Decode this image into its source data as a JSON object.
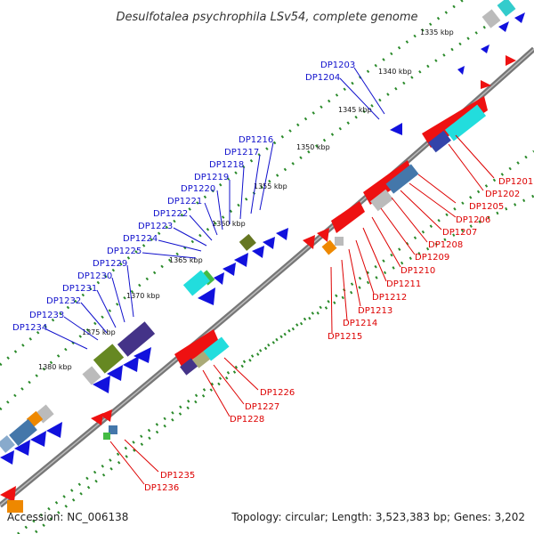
{
  "title": "Desulfotalea psychrophila LSv54, complete genome",
  "footer": {
    "accession": "Accession: NC_006138",
    "summary": "Topology: circular; Length: 3,523,383 bp; Genes: 3,202"
  },
  "scale_labels": [
    "1335 kbp",
    "1340 kbp",
    "1345 kbp",
    "1350 kbp",
    "1355 kbp",
    "1360 kbp",
    "1365 kbp",
    "1370 kbp",
    "1375 kbp",
    "1380 kbp"
  ],
  "colors": {
    "forward_label": "#1010cc",
    "reverse_label": "#dd0000",
    "backbone": "#777777",
    "tick": "#2a8a2a"
  },
  "forward_genes": [
    "DP1203",
    "DP1204",
    "DP1216",
    "DP1217",
    "DP1218",
    "DP1219",
    "DP1220",
    "DP1221",
    "DP1222",
    "DP1223",
    "DP1224",
    "DP1225",
    "DP1229",
    "DP1230",
    "DP1231",
    "DP1232",
    "DP1233",
    "DP1234"
  ],
  "reverse_genes": [
    "DP1201",
    "DP1202",
    "DP1205",
    "DP1206",
    "DP1207",
    "DP1208",
    "DP1209",
    "DP1210",
    "DP1211",
    "DP1212",
    "DP1213",
    "DP1214",
    "DP1215",
    "DP1226",
    "DP1227",
    "DP1228",
    "DP1235",
    "DP1236"
  ]
}
